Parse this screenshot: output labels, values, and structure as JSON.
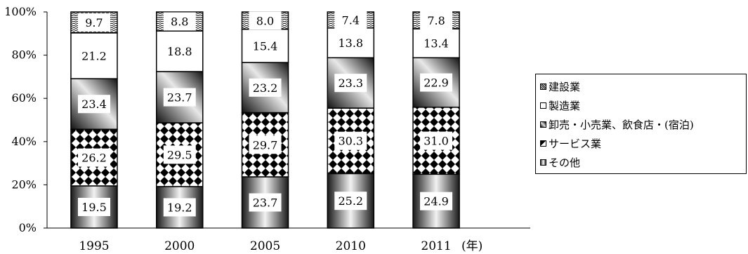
{
  "chart_data": {
    "type": "bar",
    "stacked": true,
    "categories": [
      "1995",
      "2000",
      "2005",
      "2010",
      "2011"
    ],
    "x_unit_label": "(年)",
    "ylim": [
      0,
      100
    ],
    "y_ticks": [
      "0%",
      "20%",
      "40%",
      "60%",
      "80%",
      "100%"
    ],
    "grid": false,
    "legend_position": "right",
    "series": [
      {
        "name": "建設業",
        "values": [
          9.7,
          8.8,
          8.0,
          7.4,
          7.8
        ]
      },
      {
        "name": "製造業",
        "values": [
          21.2,
          18.8,
          15.4,
          13.8,
          13.4
        ]
      },
      {
        "name": "卸売・小売業、飲食店・(宿泊)",
        "values": [
          23.4,
          23.7,
          23.2,
          23.3,
          22.9
        ]
      },
      {
        "name": "サービス業",
        "values": [
          26.2,
          29.5,
          29.7,
          30.3,
          31.0
        ]
      },
      {
        "name": "その他",
        "values": [
          19.5,
          19.2,
          23.7,
          25.2,
          24.9
        ]
      }
    ],
    "value_labels": [
      [
        "19.5",
        "26.2",
        "23.4",
        "21.2",
        "9.7"
      ],
      [
        "19.2",
        "29.5",
        "23.7",
        "18.8",
        "8.8"
      ],
      [
        "23.7",
        "29.7",
        "23.2",
        "15.4",
        "8.0"
      ],
      [
        "25.2",
        "30.3",
        "23.3",
        "13.8",
        "7.4"
      ],
      [
        "24.9",
        "31.0",
        "22.9",
        "13.4",
        "7.8"
      ]
    ]
  }
}
